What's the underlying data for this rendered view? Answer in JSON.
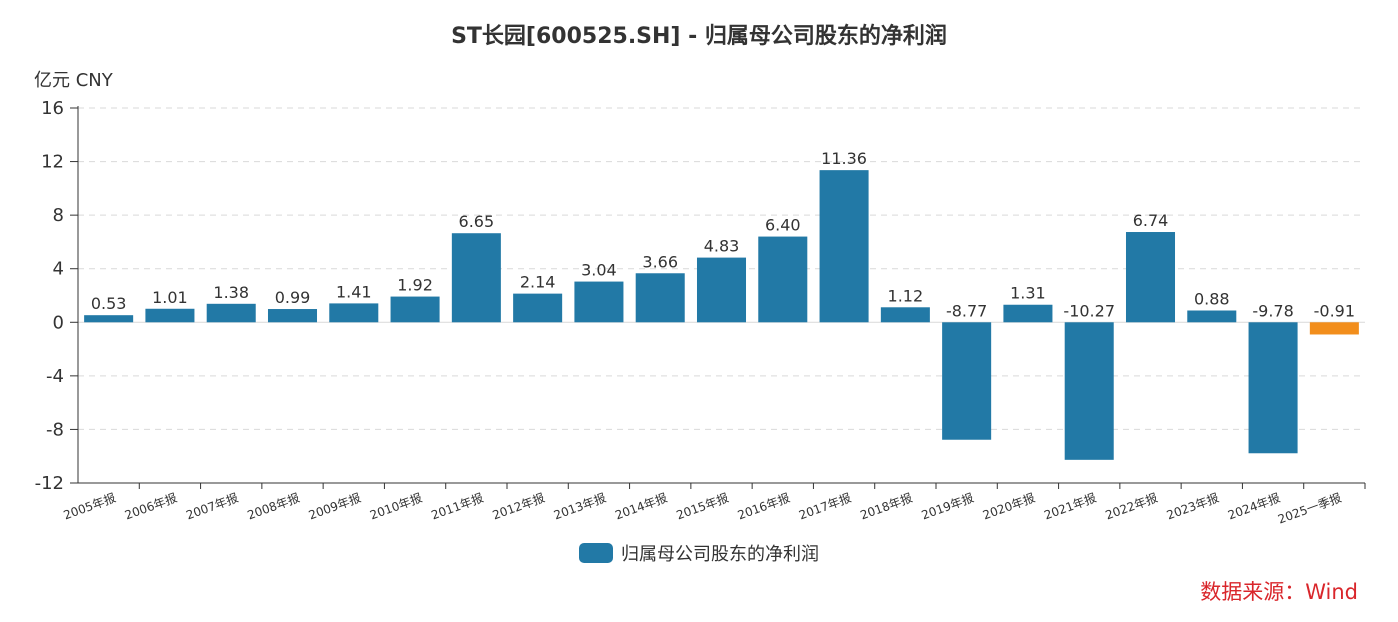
{
  "title": "ST长园[600525.SH] - 归属母公司股东的净利润",
  "unit_label": "亿元  CNY",
  "source_label": "数据来源：Wind",
  "colors": {
    "bar": "#2279a6",
    "bar_highlight": "#f28e1c",
    "source": "#d9262b"
  },
  "chart_data": {
    "type": "bar",
    "categories": [
      "2005年报",
      "2006年报",
      "2007年报",
      "2008年报",
      "2009年报",
      "2010年报",
      "2011年报",
      "2012年报",
      "2013年报",
      "2014年报",
      "2015年报",
      "2016年报",
      "2017年报",
      "2018年报",
      "2019年报",
      "2020年报",
      "2021年报",
      "2022年报",
      "2023年报",
      "2024年报",
      "2025一季报"
    ],
    "series": [
      {
        "name": "归属母公司股东的净利润",
        "values": [
          0.53,
          1.01,
          1.38,
          0.99,
          1.41,
          1.92,
          6.65,
          2.14,
          3.04,
          3.66,
          4.83,
          6.4,
          11.36,
          1.12,
          -8.77,
          1.31,
          -10.27,
          6.74,
          0.88,
          -9.78,
          -0.91
        ],
        "labels": [
          "0.53",
          "1.01",
          "1.38",
          "0.99",
          "1.41",
          "1.92",
          "6.65",
          "2.14",
          "3.04",
          "3.66",
          "4.83",
          "6.40",
          "11.36",
          "1.12",
          "-8.77",
          "1.31",
          "-10.27",
          "6.74",
          "0.88",
          "-9.78",
          "-0.91"
        ]
      }
    ],
    "highlight_index": 20,
    "ylim": [
      -12,
      16
    ],
    "yticks": [
      16,
      12,
      8,
      4,
      0,
      -4,
      -8,
      -12
    ],
    "ytick_labels": [
      "16",
      "12",
      "8",
      "4",
      "0",
      "-4",
      "-8",
      "-12"
    ],
    "grid": true,
    "legend_position": "bottom"
  }
}
